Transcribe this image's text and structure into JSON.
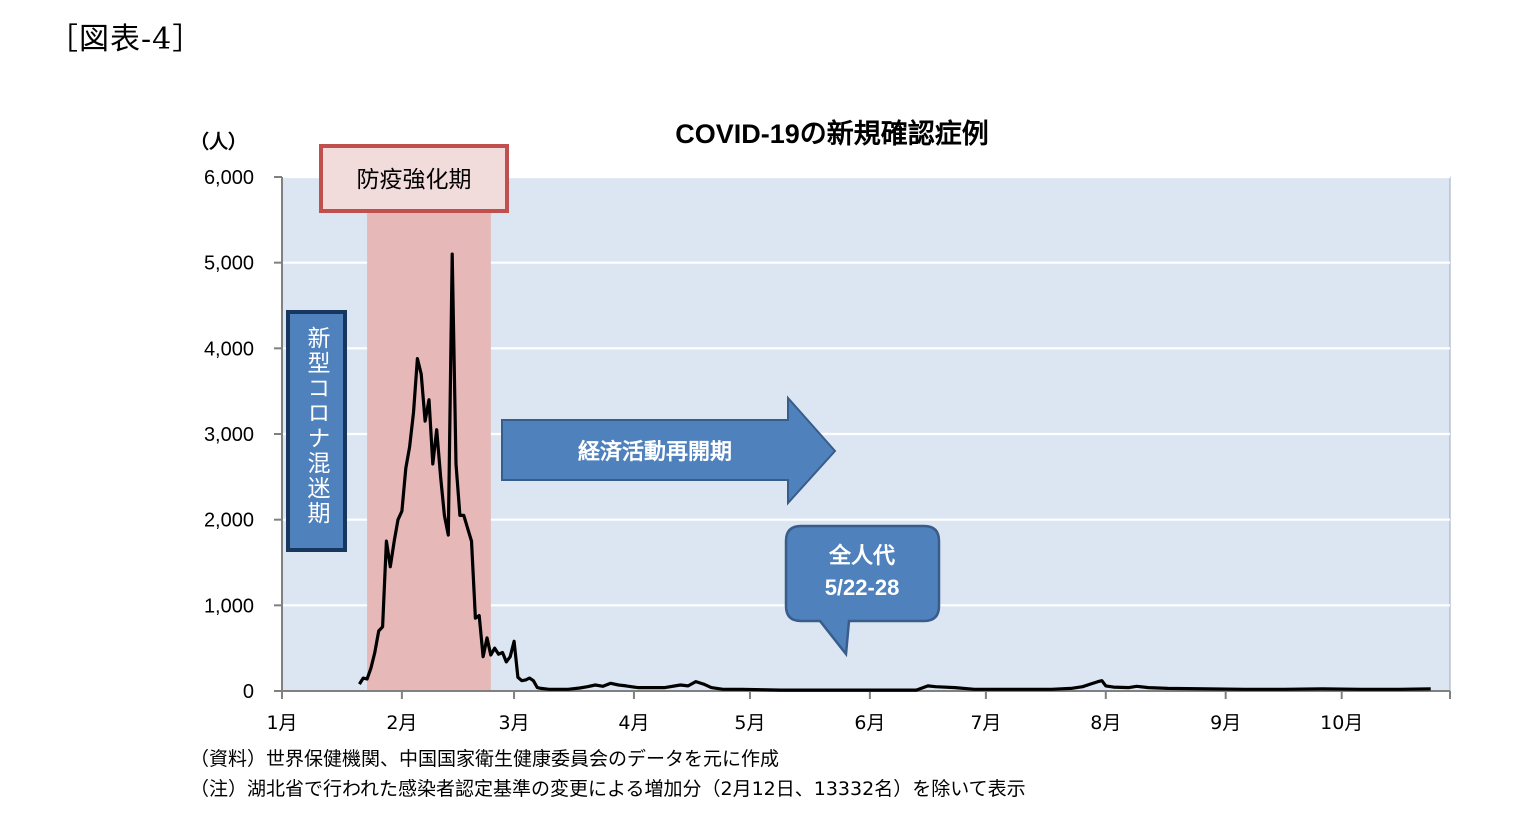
{
  "figure_label": "［図表-4］",
  "notes": {
    "source": "（資料）世界保健機関、中国国家衛生健康委員会のデータを元に作成",
    "note": "（注）湖北省で行われた感染者認定基準の変更による増加分（2月12日、13332名）を除いて表示"
  },
  "chart_data": {
    "type": "line",
    "title": "COVID-19の新規確認症例",
    "ylabel": "（人）",
    "xlabel": "",
    "ylim": [
      0,
      6000
    ],
    "y_ticks": [
      "0",
      "1,000",
      "2,000",
      "3,000",
      "4,000",
      "5,000",
      "6,000"
    ],
    "y_tick_values": [
      0,
      1000,
      2000,
      3000,
      4000,
      5000,
      6000
    ],
    "x_tick_labels": [
      "1月",
      "2月",
      "3月",
      "4月",
      "5月",
      "6月",
      "7月",
      "8月",
      "9月",
      "10月"
    ],
    "x_axis_unit": "day_of_year_2020",
    "x_tick_values": [
      1,
      32,
      61,
      92,
      122,
      153,
      183,
      214,
      245,
      275
    ],
    "grid": true,
    "colors": {
      "plot_bg": "#dce6f2",
      "line": "#000000",
      "shade": "#e6b9b8",
      "red_box_fill": "#f2dcdb",
      "red_box_border": "#c0504d",
      "blue": "#4f81bd",
      "blue_dark": "#17375e",
      "arrow_border": "#385d8a"
    },
    "annotations": {
      "shaded_period": {
        "label": "防疫強化期",
        "x_start": 23,
        "x_end": 55
      },
      "confusion_period": {
        "label": "新型コロナ混迷期"
      },
      "reopening_arrow": {
        "label": "経済活動再開期"
      },
      "npc_callout": {
        "line1": "全人代",
        "line2": "5/22-28"
      }
    },
    "series": [
      {
        "values": [
          [
            21,
            80
          ],
          [
            22,
            150
          ],
          [
            23,
            140
          ],
          [
            24,
            270
          ],
          [
            25,
            450
          ],
          [
            26,
            700
          ],
          [
            27,
            750
          ],
          [
            28,
            1750
          ],
          [
            29,
            1450
          ],
          [
            30,
            1750
          ],
          [
            31,
            2000
          ],
          [
            32,
            2100
          ],
          [
            33,
            2600
          ],
          [
            34,
            2850
          ],
          [
            35,
            3250
          ],
          [
            36,
            3880
          ],
          [
            37,
            3700
          ],
          [
            38,
            3150
          ],
          [
            39,
            3400
          ],
          [
            40,
            2650
          ],
          [
            41,
            3050
          ],
          [
            42,
            2500
          ],
          [
            43,
            2050
          ],
          [
            44,
            1820
          ],
          [
            45,
            5100
          ],
          [
            46,
            2650
          ],
          [
            47,
            2050
          ],
          [
            48,
            2050
          ],
          [
            49,
            1900
          ],
          [
            50,
            1750
          ],
          [
            51,
            850
          ],
          [
            52,
            880
          ],
          [
            53,
            400
          ],
          [
            54,
            620
          ],
          [
            55,
            420
          ],
          [
            56,
            500
          ],
          [
            57,
            430
          ],
          [
            58,
            450
          ],
          [
            59,
            340
          ],
          [
            60,
            400
          ],
          [
            61,
            580
          ],
          [
            62,
            160
          ],
          [
            63,
            120
          ],
          [
            64,
            130
          ],
          [
            65,
            150
          ],
          [
            66,
            120
          ],
          [
            67,
            40
          ],
          [
            68,
            30
          ],
          [
            70,
            20
          ],
          [
            72,
            20
          ],
          [
            75,
            20
          ],
          [
            78,
            35
          ],
          [
            80,
            50
          ],
          [
            82,
            70
          ],
          [
            84,
            55
          ],
          [
            86,
            90
          ],
          [
            88,
            70
          ],
          [
            90,
            60
          ],
          [
            93,
            40
          ],
          [
            96,
            40
          ],
          [
            100,
            40
          ],
          [
            104,
            70
          ],
          [
            106,
            60
          ],
          [
            108,
            110
          ],
          [
            110,
            80
          ],
          [
            112,
            40
          ],
          [
            115,
            20
          ],
          [
            120,
            20
          ],
          [
            125,
            15
          ],
          [
            130,
            10
          ],
          [
            140,
            10
          ],
          [
            150,
            10
          ],
          [
            160,
            10
          ],
          [
            165,
            10
          ],
          [
            168,
            60
          ],
          [
            170,
            50
          ],
          [
            175,
            40
          ],
          [
            180,
            20
          ],
          [
            190,
            20
          ],
          [
            200,
            20
          ],
          [
            205,
            30
          ],
          [
            208,
            50
          ],
          [
            210,
            80
          ],
          [
            212,
            110
          ],
          [
            213,
            120
          ],
          [
            214,
            60
          ],
          [
            216,
            45
          ],
          [
            220,
            40
          ],
          [
            222,
            55
          ],
          [
            225,
            40
          ],
          [
            230,
            30
          ],
          [
            240,
            25
          ],
          [
            250,
            20
          ],
          [
            260,
            20
          ],
          [
            270,
            25
          ],
          [
            280,
            20
          ],
          [
            290,
            20
          ],
          [
            298,
            25
          ]
        ]
      }
    ]
  }
}
